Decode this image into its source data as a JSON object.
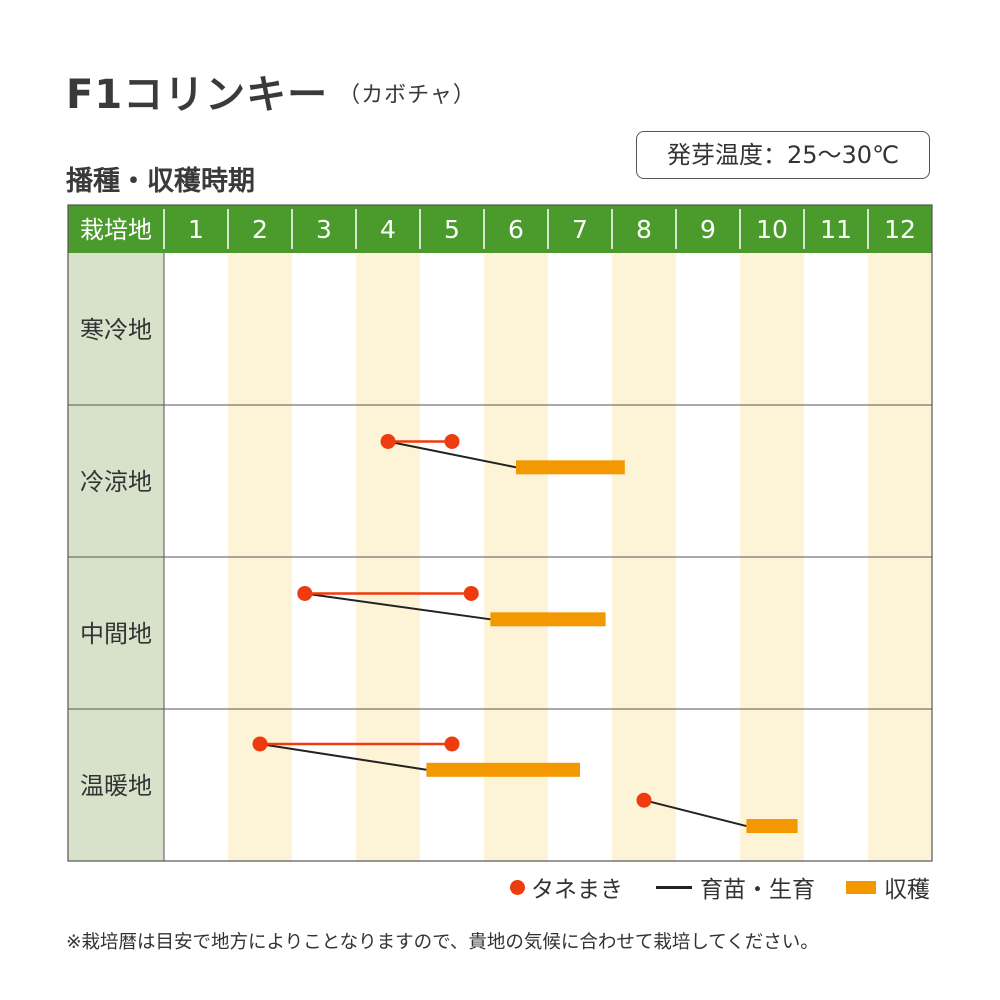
{
  "title": "F1コリンキー",
  "title_sub": "（カボチャ）",
  "temperature_label": "発芽温度：25〜30℃",
  "section_title": "播種・収穫時期",
  "colors": {
    "header_green": "#4a9a2c",
    "label_column": "#d8e2cb",
    "shaded_column": "#fdf4d8",
    "sowing_red": "#ee3b0f",
    "growing_black": "#222222",
    "harvest_orange": "#f39800",
    "grid_line": "#555555"
  },
  "legend": {
    "sowing": "タネまき",
    "growing": "育苗・生育",
    "harvest": "収穫"
  },
  "footnote": "※栽培暦は目安で地方によりことなりますので、貴地の気候に合わせて栽培してください。",
  "chart_data": {
    "type": "gantt",
    "header_label": "栽培地",
    "months": [
      "1",
      "2",
      "3",
      "4",
      "5",
      "6",
      "7",
      "8",
      "9",
      "10",
      "11",
      "12"
    ],
    "x_unit": "month (1.0 = start of January)",
    "regions": [
      {
        "name": "寒冷地",
        "schedules": []
      },
      {
        "name": "冷涼地",
        "schedules": [
          {
            "sow_start": 4.5,
            "sow_end": 5.5,
            "harvest_start": 6.5,
            "harvest_end": 8.2
          }
        ]
      },
      {
        "name": "中間地",
        "schedules": [
          {
            "sow_start": 3.2,
            "sow_end": 5.8,
            "harvest_start": 6.1,
            "harvest_end": 7.9
          }
        ]
      },
      {
        "name": "温暖地",
        "schedules": [
          {
            "sow_start": 2.5,
            "sow_end": 5.5,
            "harvest_start": 5.1,
            "harvest_end": 7.5
          },
          {
            "sow_start": 8.5,
            "sow_end": 8.5,
            "harvest_start": 10.1,
            "harvest_end": 10.9
          }
        ]
      }
    ]
  }
}
